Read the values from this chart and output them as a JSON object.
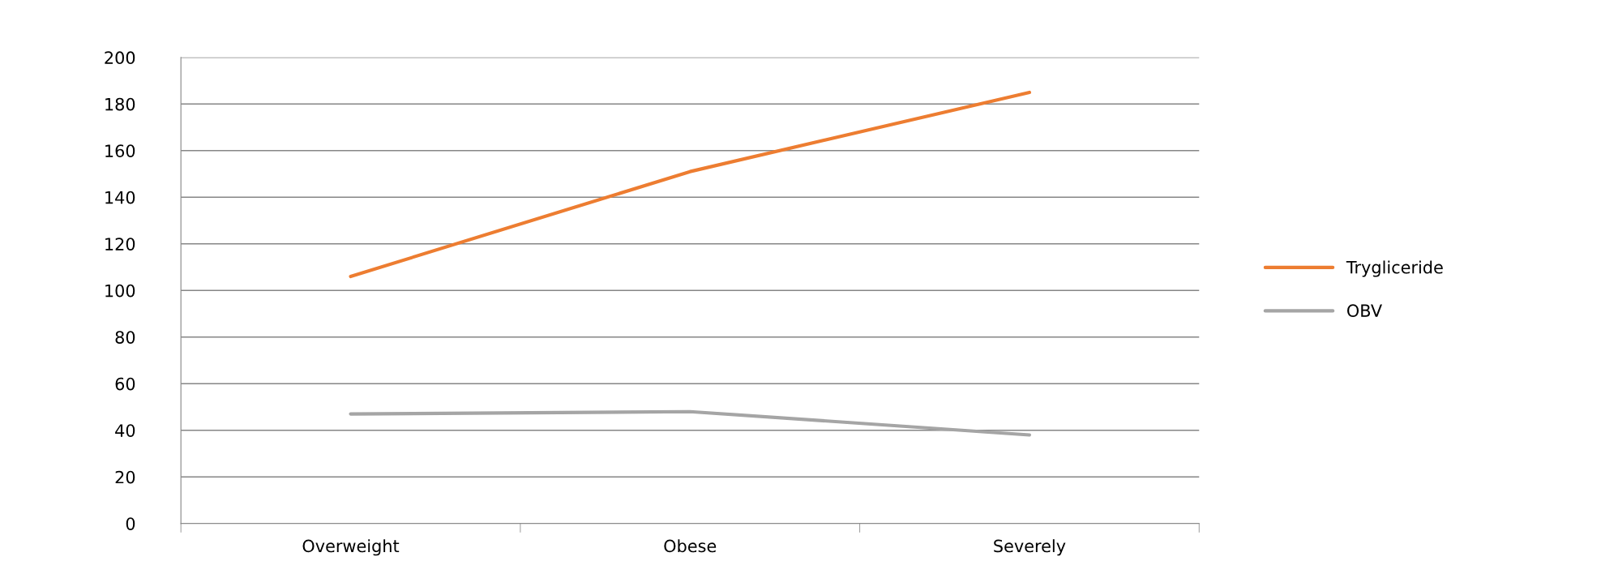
{
  "chart_data": {
    "type": "line",
    "categories": [
      "Overweight",
      "Obese",
      "Severely"
    ],
    "series": [
      {
        "name": "Trygliceride",
        "color": "#ed7d31",
        "values": [
          106,
          151,
          185
        ]
      },
      {
        "name": "OBV",
        "color": "#a5a5a5",
        "values": [
          47,
          48,
          38
        ]
      }
    ],
    "ylim": [
      0,
      200
    ],
    "yticks": [
      0,
      20,
      40,
      60,
      80,
      100,
      120,
      140,
      160,
      180,
      200
    ],
    "grid": "y",
    "legend": "right",
    "marker": "none",
    "line_style": "solid"
  }
}
